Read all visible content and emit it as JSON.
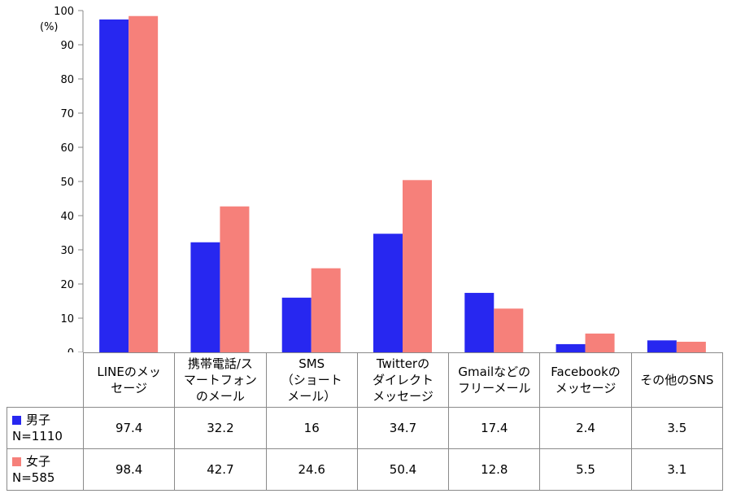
{
  "chart_data": {
    "type": "bar",
    "unit_label": "(%)",
    "ylim": [
      0,
      100
    ],
    "yticks": [
      0,
      10,
      20,
      30,
      40,
      50,
      60,
      70,
      80,
      90,
      100
    ],
    "categories": [
      "LINEのメッ\nセージ",
      "携帯電話/ス\nマートフォン\nのメール",
      "SMS\n（ショート\nメール）",
      "Twitterの\nダイレクト\nメッセージ",
      "Gmailなどの\nフリーメール",
      "Facebookの\nメッセージ",
      "その他のSNS"
    ],
    "series": [
      {
        "name": "男子",
        "n_label": "N=1110",
        "color": "#2727f0",
        "values": [
          97.4,
          32.2,
          16,
          34.7,
          17.4,
          2.4,
          3.5
        ]
      },
      {
        "name": "女子",
        "n_label": "N=585",
        "color": "#f6807a",
        "values": [
          98.4,
          42.7,
          24.6,
          50.4,
          12.8,
          5.5,
          3.1
        ]
      }
    ],
    "table_values": [
      [
        "97.4",
        "32.2",
        "16",
        "34.7",
        "17.4",
        "2.4",
        "3.5"
      ],
      [
        "98.4",
        "42.7",
        "24.6",
        "50.4",
        "12.8",
        "5.5",
        "3.1"
      ]
    ],
    "grid": false,
    "legend": "data-table"
  }
}
